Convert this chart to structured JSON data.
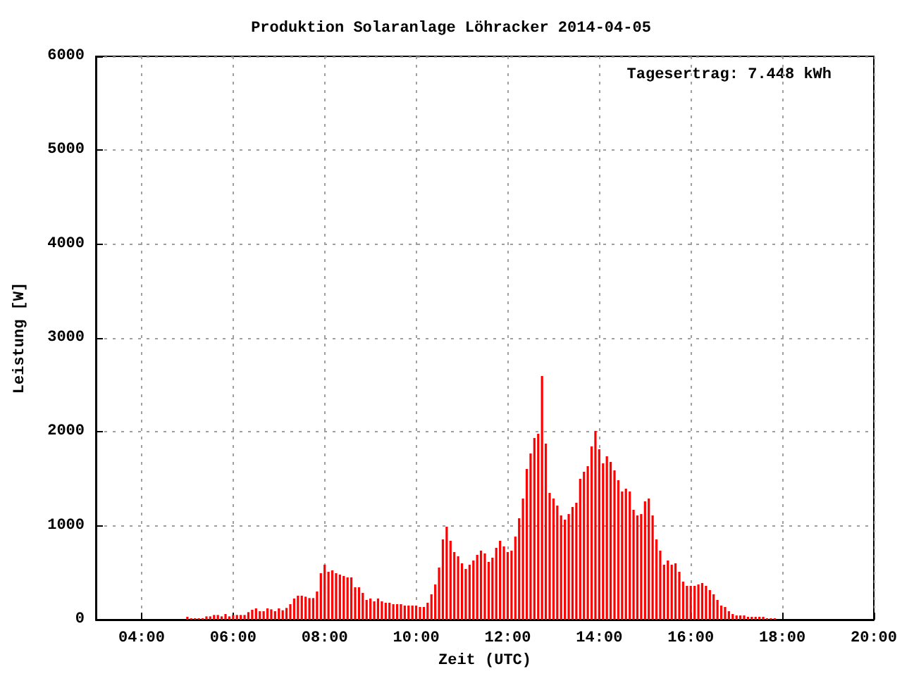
{
  "chart_data": {
    "type": "bar",
    "title": "Produktion Solaranlage Löhracker 2014-04-05",
    "xlabel": "Zeit (UTC)",
    "ylabel": "Leistung [W]",
    "annotations": [
      "Tagesertrag: 7.448 kWh"
    ],
    "x": [
      "2014-04-05T05:00",
      "2014-04-05T05:05",
      "2014-04-05T05:10",
      "2014-04-05T05:15",
      "2014-04-05T05:20",
      "2014-04-05T05:25",
      "2014-04-05T05:30",
      "2014-04-05T05:35",
      "2014-04-05T05:40",
      "2014-04-05T05:45",
      "2014-04-05T05:50",
      "2014-04-05T05:55",
      "2014-04-05T06:00",
      "2014-04-05T06:05",
      "2014-04-05T06:10",
      "2014-04-05T06:15",
      "2014-04-05T06:20",
      "2014-04-05T06:25",
      "2014-04-05T06:30",
      "2014-04-05T06:35",
      "2014-04-05T06:40",
      "2014-04-05T06:45",
      "2014-04-05T06:50",
      "2014-04-05T06:55",
      "2014-04-05T07:00",
      "2014-04-05T07:05",
      "2014-04-05T07:10",
      "2014-04-05T07:15",
      "2014-04-05T07:20",
      "2014-04-05T07:25",
      "2014-04-05T07:30",
      "2014-04-05T07:35",
      "2014-04-05T07:40",
      "2014-04-05T07:45",
      "2014-04-05T07:50",
      "2014-04-05T07:55",
      "2014-04-05T08:00",
      "2014-04-05T08:05",
      "2014-04-05T08:10",
      "2014-04-05T08:15",
      "2014-04-05T08:20",
      "2014-04-05T08:25",
      "2014-04-05T08:30",
      "2014-04-05T08:35",
      "2014-04-05T08:40",
      "2014-04-05T08:45",
      "2014-04-05T08:50",
      "2014-04-05T08:55",
      "2014-04-05T09:00",
      "2014-04-05T09:05",
      "2014-04-05T09:10",
      "2014-04-05T09:15",
      "2014-04-05T09:20",
      "2014-04-05T09:25",
      "2014-04-05T09:30",
      "2014-04-05T09:35",
      "2014-04-05T09:40",
      "2014-04-05T09:45",
      "2014-04-05T09:50",
      "2014-04-05T09:55",
      "2014-04-05T10:00",
      "2014-04-05T10:05",
      "2014-04-05T10:10",
      "2014-04-05T10:15",
      "2014-04-05T10:20",
      "2014-04-05T10:25",
      "2014-04-05T10:30",
      "2014-04-05T10:35",
      "2014-04-05T10:40",
      "2014-04-05T10:45",
      "2014-04-05T10:50",
      "2014-04-05T10:55",
      "2014-04-05T11:00",
      "2014-04-05T11:05",
      "2014-04-05T11:10",
      "2014-04-05T11:15",
      "2014-04-05T11:20",
      "2014-04-05T11:25",
      "2014-04-05T11:30",
      "2014-04-05T11:35",
      "2014-04-05T11:40",
      "2014-04-05T11:45",
      "2014-04-05T11:50",
      "2014-04-05T11:55",
      "2014-04-05T12:00",
      "2014-04-05T12:05",
      "2014-04-05T12:10",
      "2014-04-05T12:15",
      "2014-04-05T12:20",
      "2014-04-05T12:25",
      "2014-04-05T12:30",
      "2014-04-05T12:35",
      "2014-04-05T12:40",
      "2014-04-05T12:45",
      "2014-04-05T12:50",
      "2014-04-05T12:55",
      "2014-04-05T13:00",
      "2014-04-05T13:05",
      "2014-04-05T13:10",
      "2014-04-05T13:15",
      "2014-04-05T13:20",
      "2014-04-05T13:25",
      "2014-04-05T13:30",
      "2014-04-05T13:35",
      "2014-04-05T13:40",
      "2014-04-05T13:45",
      "2014-04-05T13:50",
      "2014-04-05T13:55",
      "2014-04-05T14:00",
      "2014-04-05T14:05",
      "2014-04-05T14:10",
      "2014-04-05T14:15",
      "2014-04-05T14:20",
      "2014-04-05T14:25",
      "2014-04-05T14:30",
      "2014-04-05T14:35",
      "2014-04-05T14:40",
      "2014-04-05T14:45",
      "2014-04-05T14:50",
      "2014-04-05T14:55",
      "2014-04-05T15:00",
      "2014-04-05T15:05",
      "2014-04-05T15:10",
      "2014-04-05T15:15",
      "2014-04-05T15:20",
      "2014-04-05T15:25",
      "2014-04-05T15:30",
      "2014-04-05T15:35",
      "2014-04-05T15:40",
      "2014-04-05T15:45",
      "2014-04-05T15:50",
      "2014-04-05T15:55",
      "2014-04-05T16:00",
      "2014-04-05T16:05",
      "2014-04-05T16:10",
      "2014-04-05T16:15",
      "2014-04-05T16:20",
      "2014-04-05T16:25",
      "2014-04-05T16:30",
      "2014-04-05T16:35",
      "2014-04-05T16:40",
      "2014-04-05T16:45",
      "2014-04-05T16:50",
      "2014-04-05T16:55",
      "2014-04-05T17:00",
      "2014-04-05T17:05",
      "2014-04-05T17:10",
      "2014-04-05T17:15",
      "2014-04-05T17:20",
      "2014-04-05T17:25",
      "2014-04-05T17:30",
      "2014-04-05T17:35",
      "2014-04-05T17:40",
      "2014-04-05T17:45",
      "2014-04-05T17:50"
    ],
    "values": [
      30,
      15,
      15,
      15,
      15,
      35,
      35,
      50,
      50,
      35,
      60,
      35,
      50,
      50,
      50,
      50,
      80,
      105,
      120,
      90,
      90,
      120,
      110,
      90,
      120,
      100,
      125,
      165,
      225,
      255,
      255,
      245,
      230,
      230,
      300,
      495,
      585,
      510,
      525,
      495,
      480,
      465,
      450,
      450,
      345,
      345,
      285,
      210,
      225,
      195,
      225,
      195,
      180,
      180,
      165,
      165,
      165,
      150,
      150,
      150,
      150,
      135,
      135,
      180,
      270,
      375,
      555,
      855,
      990,
      840,
      720,
      675,
      600,
      540,
      585,
      630,
      690,
      735,
      705,
      615,
      660,
      765,
      840,
      780,
      720,
      735,
      885,
      1080,
      1290,
      1605,
      1770,
      1935,
      1980,
      2595,
      1875,
      1350,
      1290,
      1215,
      1110,
      1065,
      1125,
      1200,
      1245,
      1500,
      1575,
      1635,
      1845,
      2010,
      1815,
      1665,
      1740,
      1680,
      1590,
      1485,
      1365,
      1395,
      1365,
      1170,
      1110,
      1125,
      1260,
      1290,
      1110,
      855,
      735,
      585,
      630,
      585,
      600,
      510,
      405,
      360,
      360,
      360,
      375,
      390,
      360,
      315,
      270,
      210,
      150,
      135,
      90,
      60,
      45,
      45,
      45,
      30,
      30,
      30,
      30,
      30,
      15,
      15,
      15
    ],
    "color": "#ff0000",
    "xlim": [
      "2014-04-05T03:00",
      "2014-04-05T20:00"
    ],
    "xticks": [
      {
        "value": "2014-04-05T04:00",
        "label": "04:00"
      },
      {
        "value": "2014-04-05T06:00",
        "label": "06:00"
      },
      {
        "value": "2014-04-05T08:00",
        "label": "08:00"
      },
      {
        "value": "2014-04-05T10:00",
        "label": "10:00"
      },
      {
        "value": "2014-04-05T12:00",
        "label": "12:00"
      },
      {
        "value": "2014-04-05T14:00",
        "label": "14:00"
      },
      {
        "value": "2014-04-05T16:00",
        "label": "16:00"
      },
      {
        "value": "2014-04-05T18:00",
        "label": "18:00"
      },
      {
        "value": "2014-04-05T20:00",
        "label": "20:00"
      }
    ],
    "ylim": [
      0,
      6000
    ],
    "yticks": [
      0,
      1000,
      2000,
      3000,
      4000,
      5000,
      6000
    ],
    "grid": true
  }
}
